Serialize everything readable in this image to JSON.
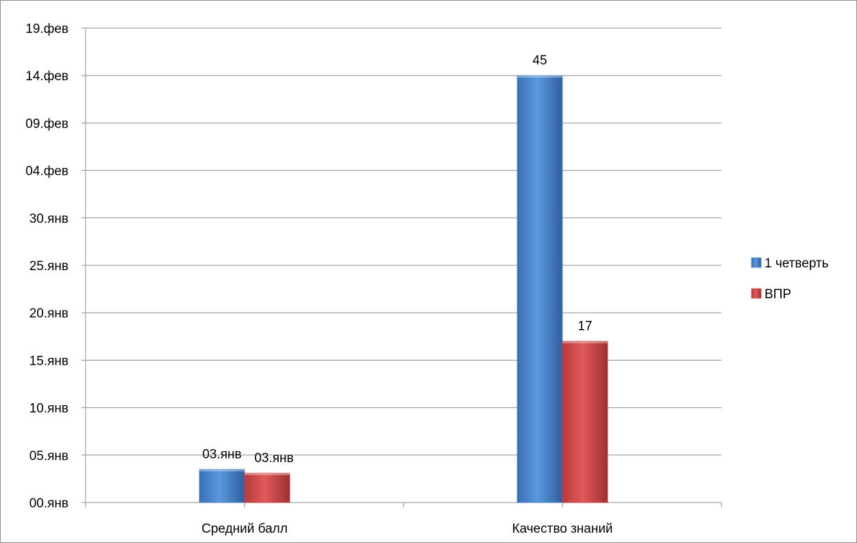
{
  "chart_data": {
    "type": "bar",
    "categories": [
      "Средний балл",
      "Качество знаний"
    ],
    "series": [
      {
        "name": "1 четверть",
        "values": [
          3.5,
          45
        ],
        "data_labels": [
          "03.янв",
          "45"
        ],
        "color": "#4a86cf"
      },
      {
        "name": "ВПР",
        "values": [
          3.1,
          17
        ],
        "data_labels": [
          "03.янв",
          "17"
        ],
        "color": "#cf4444"
      }
    ],
    "yticks": [
      {
        "value": 0,
        "label": "00.янв"
      },
      {
        "value": 5,
        "label": "05.янв"
      },
      {
        "value": 10,
        "label": "10.янв"
      },
      {
        "value": 15,
        "label": "15.янв"
      },
      {
        "value": 20,
        "label": "20.янв"
      },
      {
        "value": 25,
        "label": "25.янв"
      },
      {
        "value": 30,
        "label": "30.янв"
      },
      {
        "value": 35,
        "label": "04.фев"
      },
      {
        "value": 40,
        "label": "09.фев"
      },
      {
        "value": 45,
        "label": "14.фев"
      },
      {
        "value": 50,
        "label": "19.фев"
      }
    ],
    "ylim": [
      0,
      50
    ],
    "grid": true,
    "legend_position": "right",
    "title": "",
    "xlabel": "",
    "ylabel": ""
  }
}
